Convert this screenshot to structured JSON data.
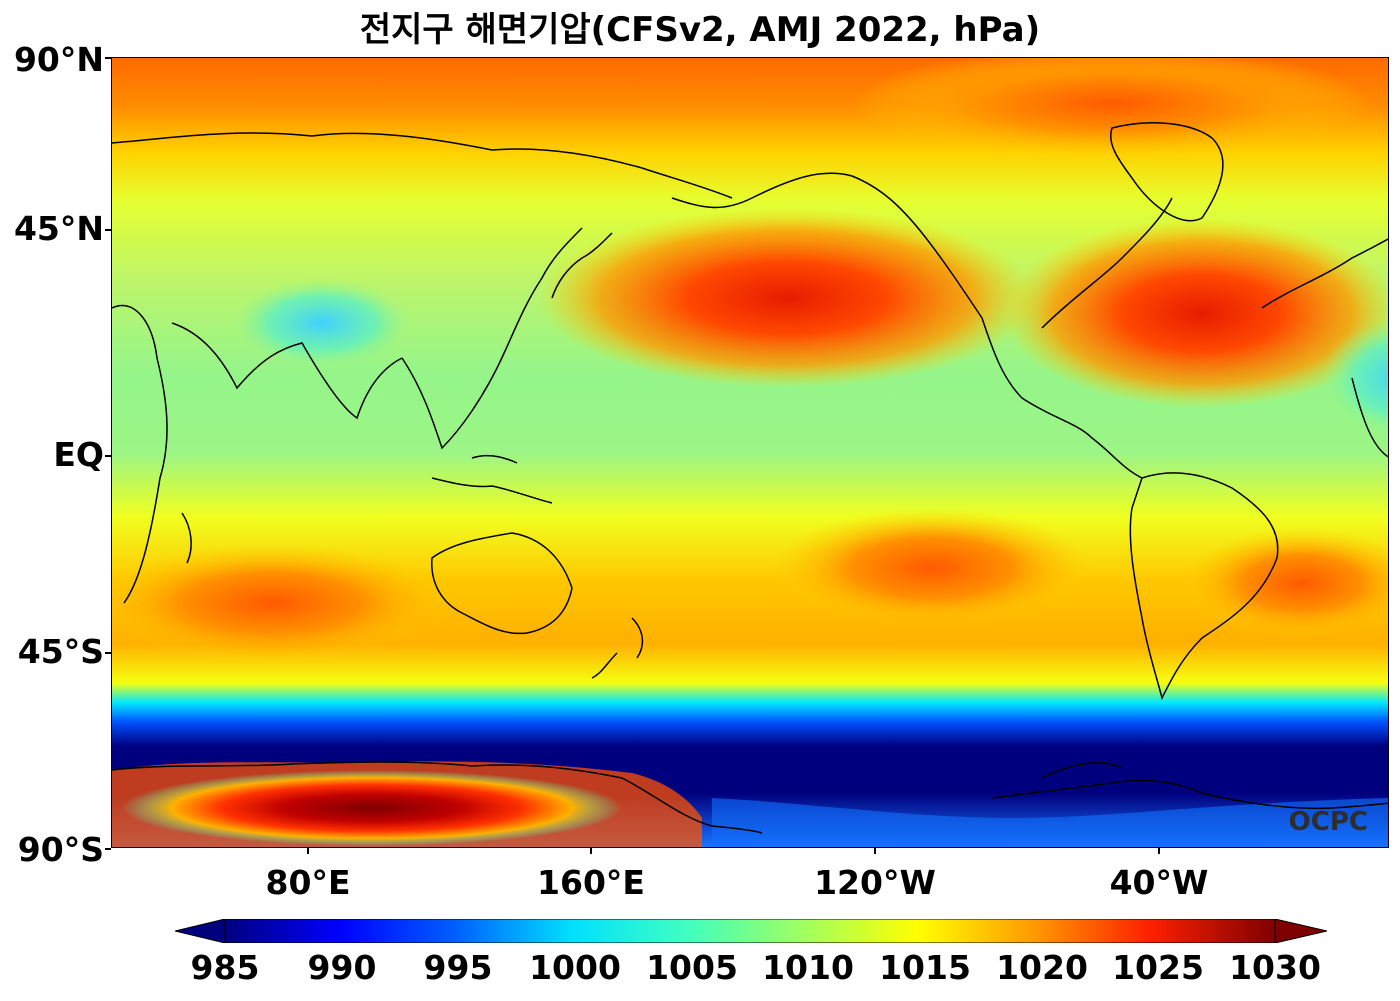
{
  "title": "전지구 해면기압(CFSv2, AMJ 2022, hPa)",
  "watermark": "OCPC",
  "lat_labels": [
    "90°N",
    "45°N",
    "EQ",
    "45°S",
    "90°S"
  ],
  "lon_labels": [
    "80°E",
    "160°E",
    "120°W",
    "40°W"
  ],
  "colorbar": {
    "ticks": [
      "985",
      "990",
      "995",
      "1000",
      "1005",
      "1010",
      "1015",
      "1020",
      "1025",
      "1030"
    ],
    "min": 985,
    "max": 1030,
    "extend": "both",
    "colormap": "jet"
  },
  "colors": {
    "deep_blue": "#00007f",
    "blue": "#0000ff",
    "cyan": "#00ffff",
    "green": "#7fff7f",
    "yellow": "#ffff00",
    "orange": "#ff8c00",
    "red": "#ff0000",
    "dark_red": "#7f0000"
  }
}
